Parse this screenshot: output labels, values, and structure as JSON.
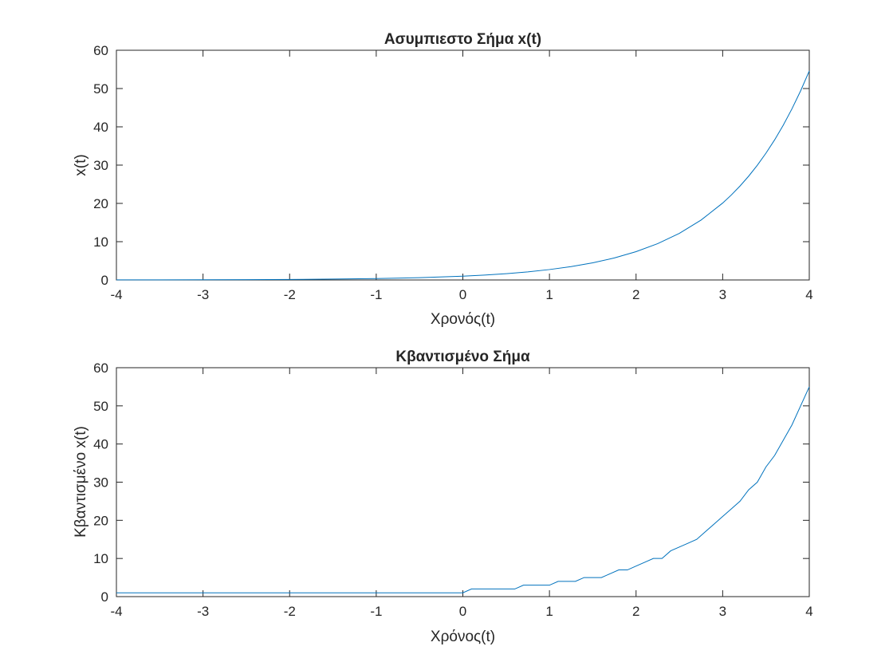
{
  "figure": {
    "background": "#ffffff",
    "axes_color": "#262626",
    "line_color": "#0072BD"
  },
  "chart_data": [
    {
      "type": "line",
      "title": "Ασυμπιεστο Σήμα x(t)",
      "xlabel": "Χρονός(t)",
      "ylabel": "x(t)",
      "xlim": [
        -4,
        4
      ],
      "ylim": [
        0,
        60
      ],
      "xticks": [
        "-4",
        "-3",
        "-2",
        "-1",
        "0",
        "1",
        "2",
        "3",
        "4"
      ],
      "yticks": [
        "0",
        "10",
        "20",
        "30",
        "40",
        "50",
        "60"
      ],
      "grid": false,
      "series": [
        {
          "color": "#0072BD",
          "x": [
            -4,
            -3.5,
            -3,
            -2.5,
            -2,
            -1.5,
            -1,
            -0.5,
            0,
            0.25,
            0.5,
            0.75,
            1,
            1.25,
            1.5,
            1.75,
            2,
            2.25,
            2.5,
            2.75,
            3,
            3.1,
            3.2,
            3.3,
            3.4,
            3.5,
            3.6,
            3.7,
            3.8,
            3.9,
            4
          ],
          "y": [
            0.018,
            0.03,
            0.05,
            0.082,
            0.135,
            0.223,
            0.368,
            0.607,
            1.0,
            1.28,
            1.65,
            2.12,
            2.72,
            3.49,
            4.48,
            5.75,
            7.39,
            9.49,
            12.18,
            15.64,
            20.09,
            22.2,
            24.53,
            27.11,
            29.96,
            33.12,
            36.6,
            40.45,
            44.7,
            49.4,
            54.6
          ]
        }
      ]
    },
    {
      "type": "line",
      "title": "Κβαντισμένο Σήμα",
      "xlabel": "Χρόνος(t)",
      "ylabel": "Κβαντισμένο x(t)",
      "xlim": [
        -4,
        4
      ],
      "ylim": [
        0,
        60
      ],
      "xticks": [
        "-4",
        "-3",
        "-2",
        "-1",
        "0",
        "1",
        "2",
        "3",
        "4"
      ],
      "yticks": [
        "0",
        "10",
        "20",
        "30",
        "40",
        "50",
        "60"
      ],
      "grid": false,
      "series": [
        {
          "color": "#0072BD",
          "x": [
            -4,
            0,
            0.1,
            0.6,
            0.7,
            1.0,
            1.1,
            1.3,
            1.4,
            1.6,
            1.7,
            1.8,
            1.9,
            2.0,
            2.1,
            2.2,
            2.3,
            2.4,
            2.5,
            2.6,
            2.7,
            2.8,
            2.9,
            3.0,
            3.1,
            3.2,
            3.3,
            3.4,
            3.5,
            3.6,
            3.7,
            3.8,
            3.9,
            4.0
          ],
          "y": [
            1,
            1,
            2,
            2,
            3,
            3,
            4,
            4,
            5,
            5,
            6,
            7,
            7,
            8,
            9,
            10,
            10,
            12,
            13,
            14,
            15,
            17,
            19,
            21,
            23,
            25,
            28,
            30,
            34,
            37,
            41,
            45,
            50,
            55
          ]
        }
      ]
    }
  ]
}
